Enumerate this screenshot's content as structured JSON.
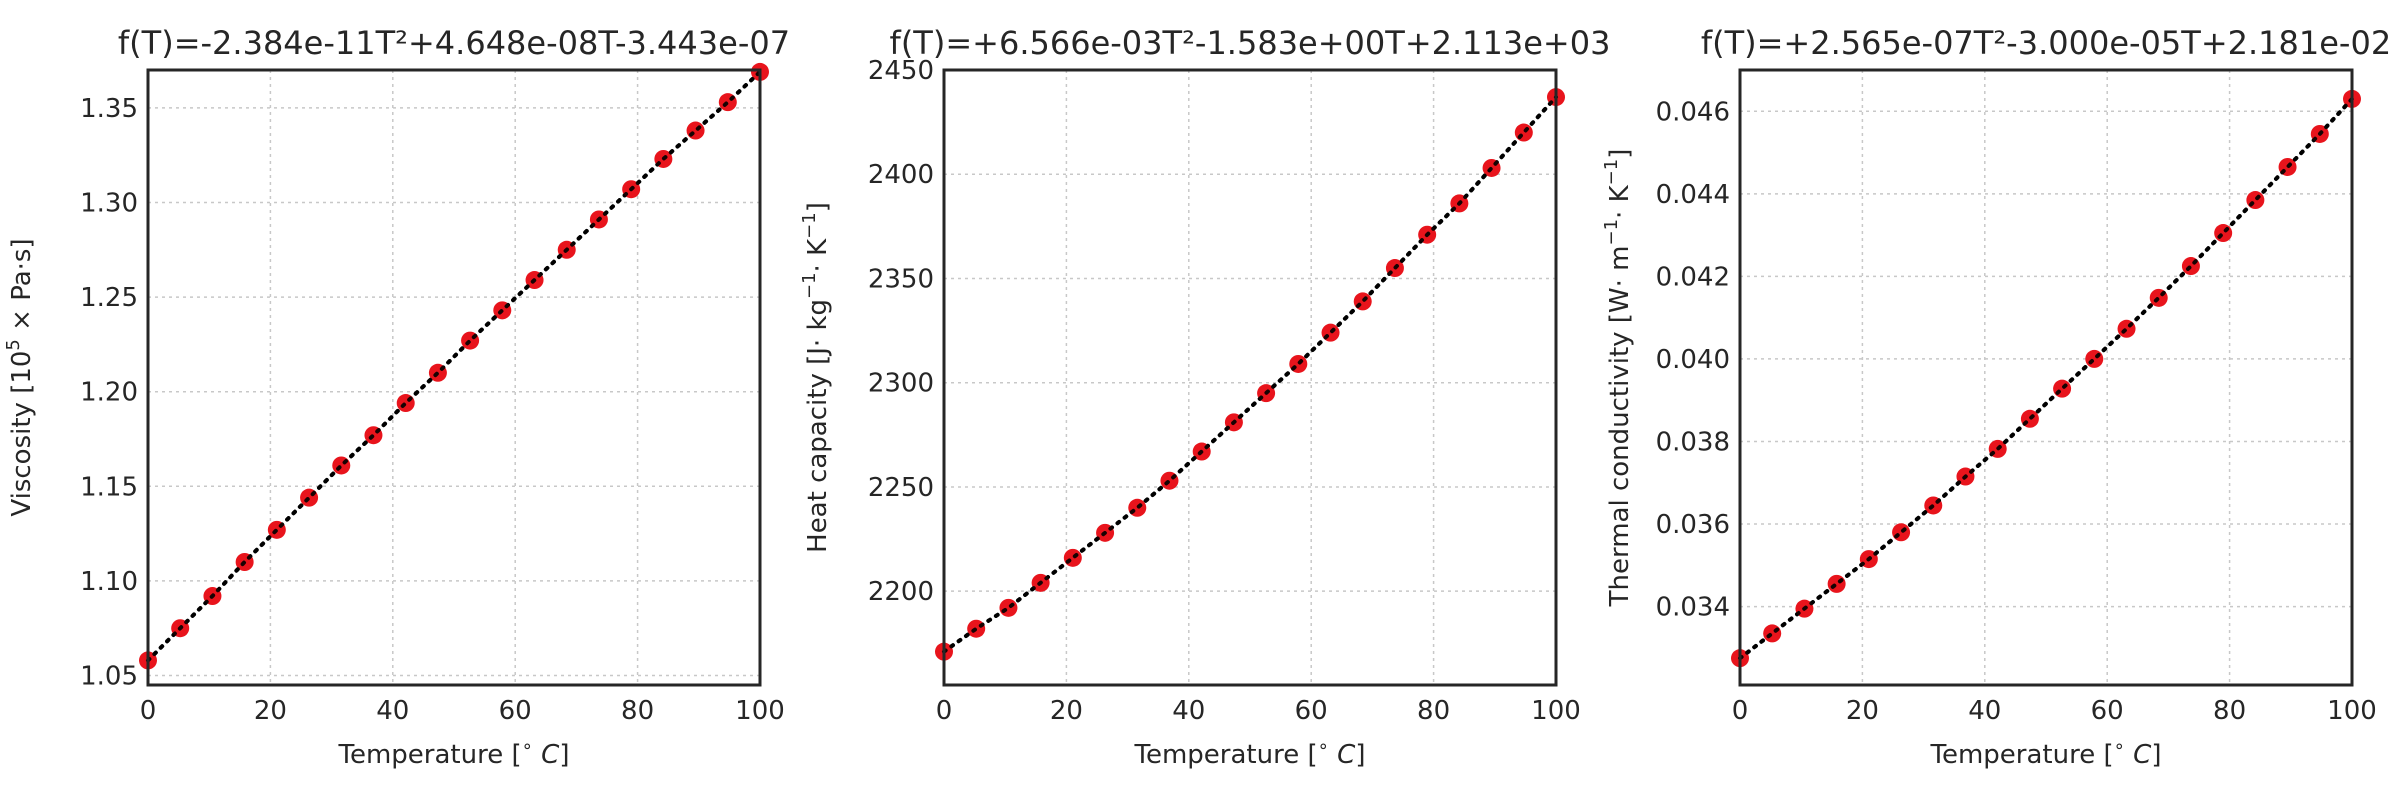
{
  "chart_data": [
    {
      "type": "scatter",
      "title": "f(T)=-2.384e-11T²+4.648e-08T-3.443e-07",
      "xlabel": {
        "main": "Temperature [",
        "sup": "∘",
        "unit": "C",
        "close": "]"
      },
      "ylabel": {
        "prefix": "Viscosity [10",
        "sup": "5",
        "suffix": " × Pa·s]"
      },
      "xlim": [
        0,
        100
      ],
      "ylim": [
        1.045,
        1.37
      ],
      "xticks": [
        "0",
        "20",
        "40",
        "60",
        "80",
        "100"
      ],
      "yticks": [
        "1.05",
        "1.10",
        "1.15",
        "1.20",
        "1.25",
        "1.30",
        "1.35"
      ],
      "grid": true,
      "marker_color": "#e8141c",
      "fit_line_color": "#000000",
      "x": [
        0,
        5.26,
        10.53,
        15.79,
        21.05,
        26.32,
        31.58,
        36.84,
        42.11,
        47.37,
        52.63,
        57.89,
        63.16,
        68.42,
        73.68,
        78.95,
        84.21,
        89.47,
        94.74,
        100
      ],
      "y": [
        1.058,
        1.075,
        1.092,
        1.11,
        1.127,
        1.144,
        1.161,
        1.177,
        1.194,
        1.21,
        1.227,
        1.243,
        1.259,
        1.275,
        1.291,
        1.307,
        1.323,
        1.338,
        1.353,
        1.369
      ]
    },
    {
      "type": "scatter",
      "title": "f(T)=+6.566e-03T²-1.583e+00T+2.113e+03",
      "xlabel": {
        "main": "Temperature [",
        "sup": "∘",
        "unit": "C",
        "close": "]"
      },
      "ylabel": {
        "prefix": "Heat capacity [J· kg",
        "sup": "−1",
        "suffix": "· K",
        "sup2": "−1",
        "close": "]"
      },
      "xlim": [
        0,
        100
      ],
      "ylim": [
        2155,
        2450
      ],
      "xticks": [
        "0",
        "20",
        "40",
        "60",
        "80",
        "100"
      ],
      "yticks": [
        "2200",
        "2250",
        "2300",
        "2350",
        "2400",
        "2450"
      ],
      "grid": true,
      "marker_color": "#e8141c",
      "fit_line_color": "#000000",
      "x": [
        0,
        5.26,
        10.53,
        15.79,
        21.05,
        26.32,
        31.58,
        36.84,
        42.11,
        47.37,
        52.63,
        57.89,
        63.16,
        68.42,
        73.68,
        78.95,
        84.21,
        89.47,
        94.74,
        100
      ],
      "y": [
        2171,
        2182,
        2192,
        2204,
        2216,
        2228,
        2240,
        2253,
        2267,
        2281,
        2295,
        2309,
        2324,
        2339,
        2355,
        2371,
        2386,
        2403,
        2420,
        2437
      ]
    },
    {
      "type": "scatter",
      "title": "f(T)=+2.565e-07T²-3.000e-05T+2.181e-02",
      "xlabel": {
        "main": "Temperature [",
        "sup": "∘",
        "unit": "C",
        "close": "]"
      },
      "ylabel": {
        "prefix": "Thermal conductivity [W· m",
        "sup": "−1",
        "suffix": "· K",
        "sup2": "−1",
        "close": "]"
      },
      "xlim": [
        0,
        100
      ],
      "ylim": [
        0.0321,
        0.047
      ],
      "xticks": [
        "0",
        "20",
        "40",
        "60",
        "80",
        "100"
      ],
      "yticks": [
        "0.034",
        "0.036",
        "0.038",
        "0.040",
        "0.042",
        "0.044",
        "0.046"
      ],
      "grid": true,
      "marker_color": "#e8141c",
      "fit_line_color": "#000000",
      "x": [
        0,
        5.26,
        10.53,
        15.79,
        21.05,
        26.32,
        31.58,
        36.84,
        42.11,
        47.37,
        52.63,
        57.89,
        63.16,
        68.42,
        73.68,
        78.95,
        84.21,
        89.47,
        94.74,
        100
      ],
      "y": [
        0.03275,
        0.03335,
        0.03395,
        0.03455,
        0.03515,
        0.0358,
        0.03645,
        0.03715,
        0.03782,
        0.03855,
        0.03928,
        0.04,
        0.04073,
        0.04148,
        0.04225,
        0.04305,
        0.04385,
        0.04465,
        0.04545,
        0.0463
      ]
    }
  ]
}
